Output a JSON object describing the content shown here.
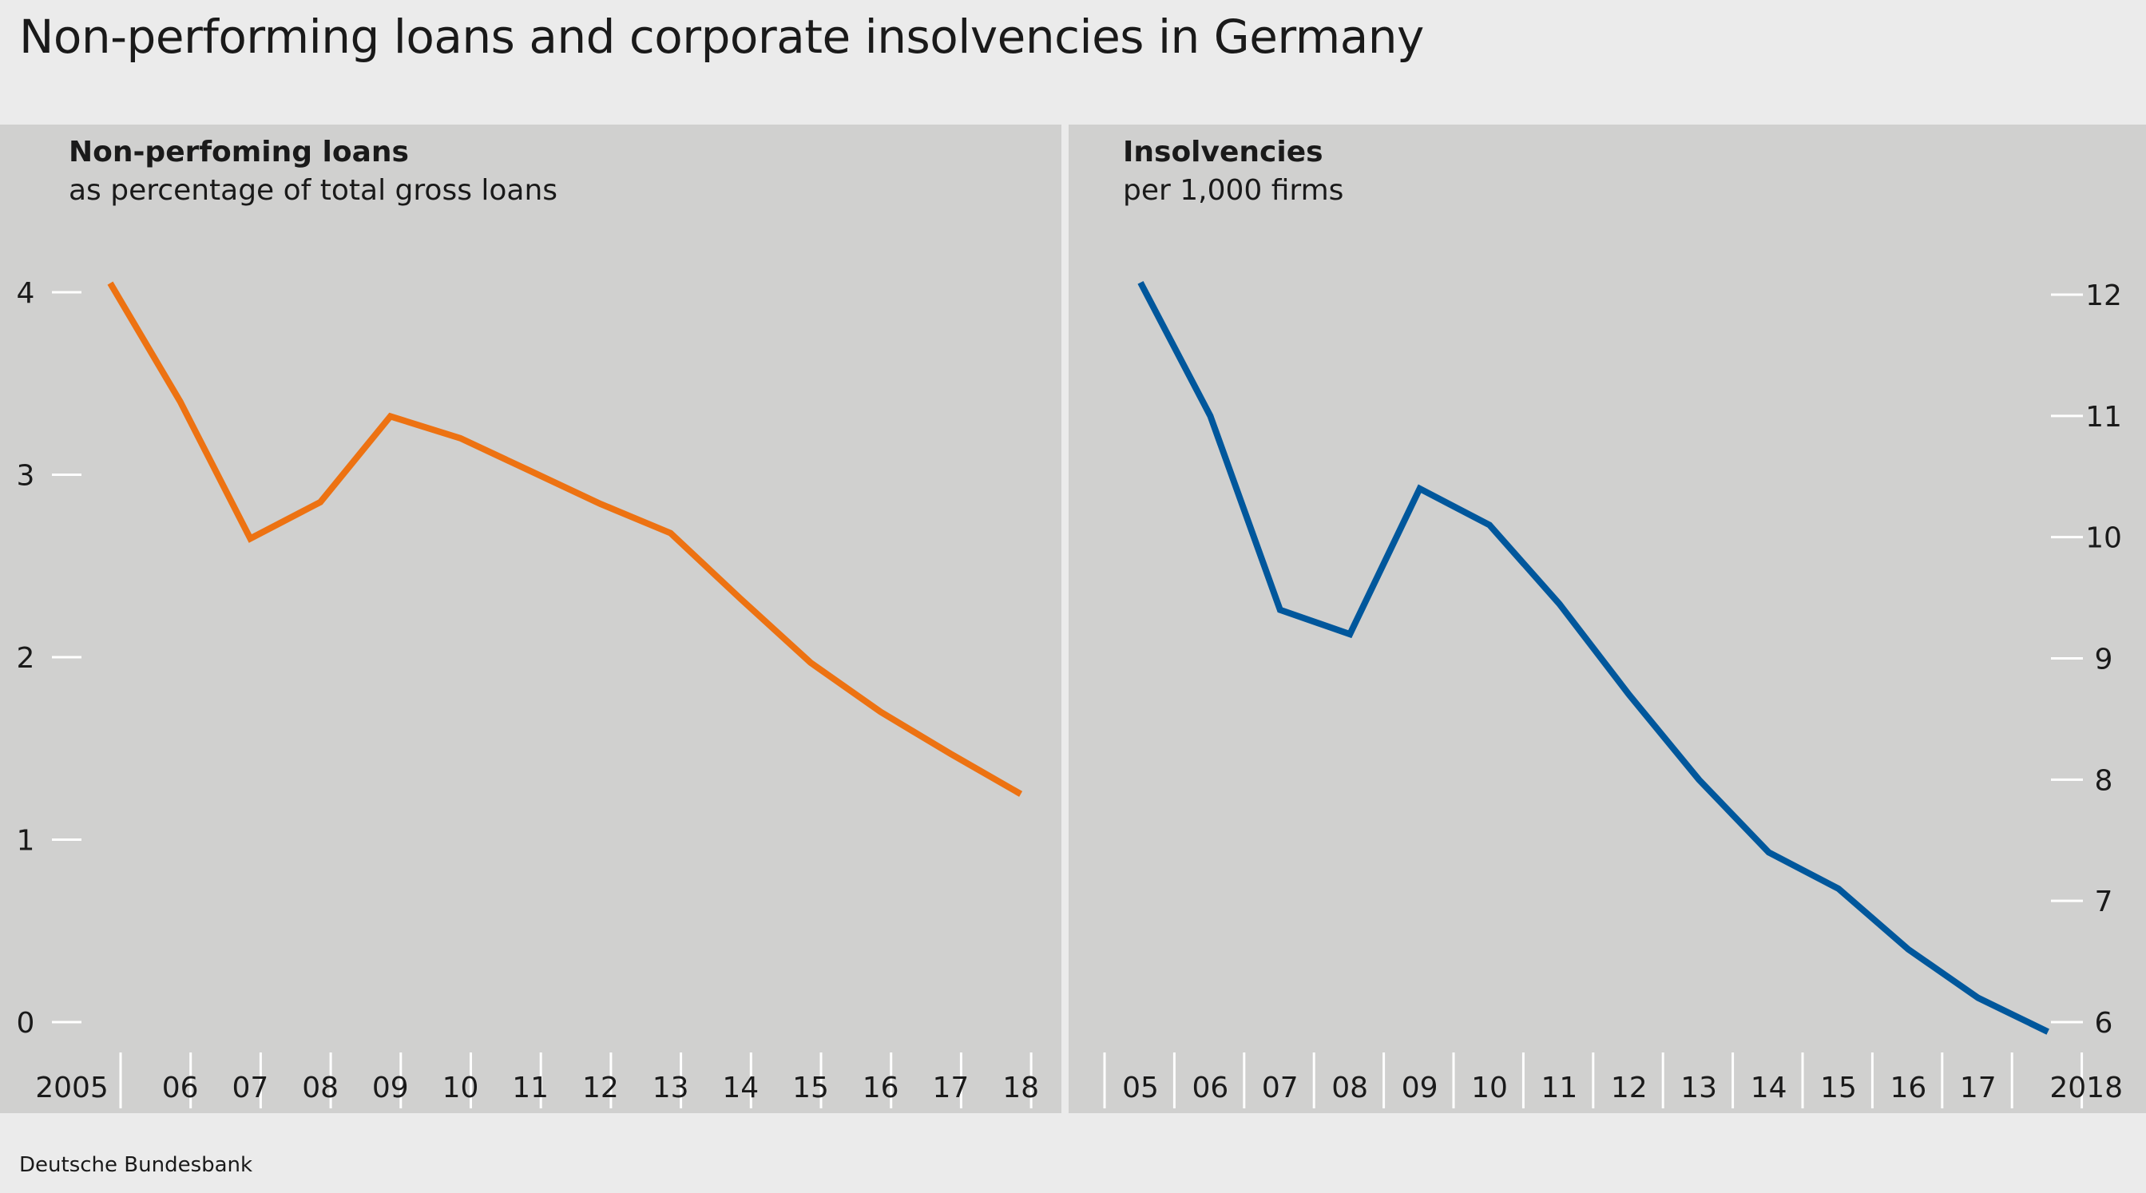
{
  "title": "Non-performing loans and corporate insolvencies in Germany",
  "source": "Deutsche Bundesbank",
  "colors": {
    "orange": "#ed7212",
    "blue": "#00579c",
    "panel": "#d0d0cf",
    "page": "#ebebeb"
  },
  "chart_data": [
    {
      "type": "line",
      "title": "Non-perfoming loans",
      "subtitle": "as percentage of total gross loans",
      "y_axis_side": "left",
      "ylim": [
        0,
        4
      ],
      "yticks": [
        "0",
        "1",
        "2",
        "3",
        "4"
      ],
      "x": [
        "2005",
        "06",
        "07",
        "08",
        "09",
        "10",
        "11",
        "12",
        "13",
        "14",
        "15",
        "16",
        "17",
        "18"
      ],
      "series": [
        {
          "values": [
            4.05,
            3.4,
            2.65,
            2.85,
            3.32,
            3.2,
            3.02,
            2.84,
            2.68,
            2.32,
            1.97,
            1.7,
            1.47,
            1.25
          ]
        }
      ],
      "color": "#ed7212"
    },
    {
      "type": "line",
      "title": "Insolvencies",
      "subtitle": "per 1,000 firms",
      "y_axis_side": "right",
      "ylim": [
        6,
        12
      ],
      "yticks": [
        "6",
        "7",
        "8",
        "9",
        "10",
        "11",
        "12"
      ],
      "x": [
        "05",
        "06",
        "07",
        "08",
        "09",
        "10",
        "11",
        "12",
        "13",
        "14",
        "15",
        "16",
        "17",
        "2018"
      ],
      "series": [
        {
          "values": [
            12.1,
            11.0,
            9.4,
            9.2,
            10.4,
            10.1,
            9.45,
            8.7,
            8.0,
            7.4,
            7.1,
            6.6,
            6.2,
            5.92
          ]
        }
      ],
      "color": "#00579c"
    }
  ]
}
